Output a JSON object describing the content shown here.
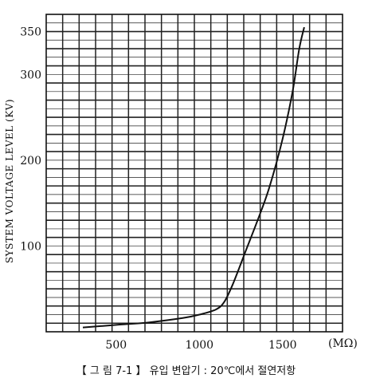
{
  "caption": "【 그 림 7-1 】 유입 변압기 : 20℃에서 절연저항",
  "chart_data": {
    "type": "line",
    "title": "",
    "xlabel": "",
    "x_unit_label": "(MΩ)",
    "ylabel": "SYSTEM VOLTAGE LEVEL (KV)",
    "xlim": [
      80,
      1860
    ],
    "ylim": [
      0,
      370
    ],
    "x_ticks": [
      500,
      1000,
      1500
    ],
    "x_tick_labels": [
      "500",
      "1000",
      "1500"
    ],
    "y_ticks": [
      100,
      200,
      300,
      350
    ],
    "y_tick_labels": [
      "100",
      "200",
      "300",
      "350"
    ],
    "grid": true,
    "series": [
      {
        "x": [
          300,
          500,
          700,
          900,
          1000,
          1100,
          1150,
          1200,
          1280,
          1350,
          1420,
          1500,
          1560,
          1600,
          1630
        ],
        "y": [
          5,
          8,
          11,
          16,
          20,
          26,
          35,
          55,
          95,
          130,
          168,
          225,
          280,
          330,
          355
        ]
      }
    ]
  }
}
